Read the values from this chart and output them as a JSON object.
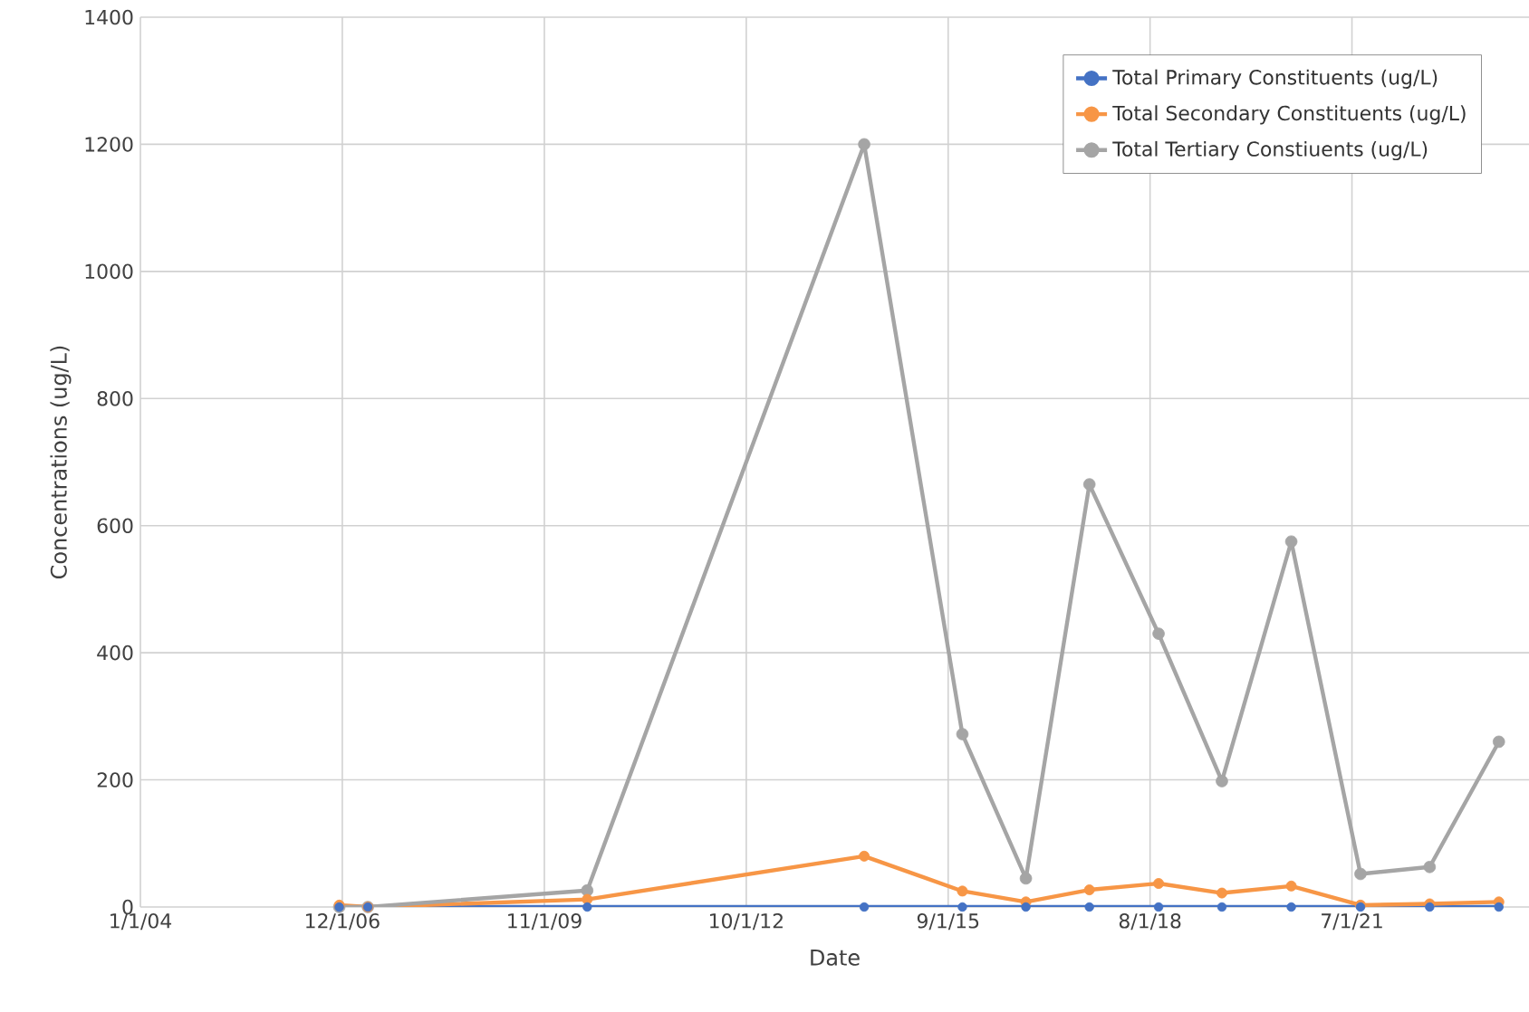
{
  "chart_data": {
    "type": "line",
    "xlabel": "Date",
    "ylabel": "Concentrations (ug/L)",
    "xlim": [
      "2004-01-01",
      "2024-01-21"
    ],
    "ylim": [
      0,
      1400
    ],
    "yticks": [
      0,
      200,
      400,
      600,
      800,
      1000,
      1200,
      1400
    ],
    "xticks": [
      {
        "value": "2004-01-01",
        "label": "1/1/04"
      },
      {
        "value": "2006-12-01",
        "label": "12/1/06"
      },
      {
        "value": "2009-11-01",
        "label": "11/1/09"
      },
      {
        "value": "2012-10-01",
        "label": "10/1/12"
      },
      {
        "value": "2015-09-01",
        "label": "9/1/15"
      },
      {
        "value": "2018-08-01",
        "label": "8/1/18"
      },
      {
        "value": "2021-07-01",
        "label": "7/1/21"
      }
    ],
    "grid": true,
    "legend": "top right",
    "marker": "circle",
    "line_style": "solid",
    "x": [
      "2006-11-15",
      "2007-04-15",
      "2010-06-15",
      "2014-06-15",
      "2015-11-15",
      "2016-10-15",
      "2017-09-15",
      "2018-09-15",
      "2019-08-15",
      "2020-08-15",
      "2021-08-15",
      "2022-08-15",
      "2023-08-15"
    ],
    "series": [
      {
        "name": "Total Primary Constituents (ug/L)",
        "color": "#4472c4",
        "values": [
          0,
          0,
          0,
          0,
          0,
          0,
          0,
          0,
          0,
          0,
          0,
          0,
          0
        ]
      },
      {
        "name": "Total Secondary Constituents (ug/L)",
        "color": "#f79646",
        "values": [
          3,
          0,
          12,
          80,
          25,
          8,
          27,
          37,
          22,
          33,
          3,
          5,
          8
        ]
      },
      {
        "name": "Total Tertiary Constiuents (ug/L)",
        "color": "#a5a5a5",
        "values": [
          0,
          0,
          26,
          1200,
          272,
          45,
          665,
          430,
          198,
          575,
          52,
          63,
          260
        ]
      }
    ]
  }
}
